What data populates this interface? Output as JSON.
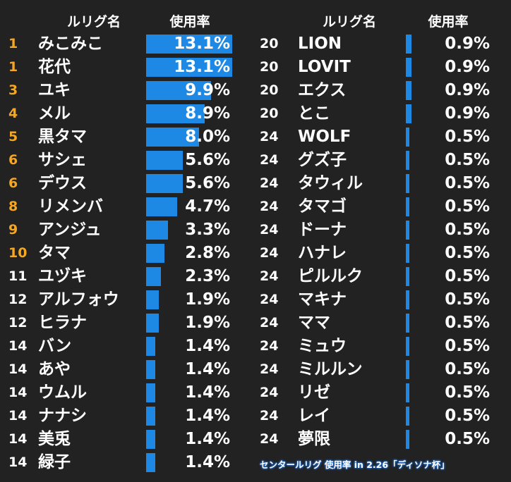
{
  "header": {
    "name_label": "ルリグ名",
    "rate_label": "使用率"
  },
  "caption": "センタールリグ 使用率 in 2.26「ディソナ杯」",
  "colors": {
    "background": "#222222",
    "bar": "#1e88e5",
    "top_rank": "#f5a623",
    "rank": "#ffffff",
    "text": "#ffffff"
  },
  "chart_data": {
    "type": "bar",
    "xlabel": "ルリグ名",
    "ylabel": "使用率",
    "left": [
      {
        "rank": "1",
        "name": "みこみこ",
        "pct_label": "13.1%",
        "value": 13.1
      },
      {
        "rank": "1",
        "name": "花代",
        "pct_label": "13.1%",
        "value": 13.1
      },
      {
        "rank": "3",
        "name": "ユキ",
        "pct_label": "9.9%",
        "value": 9.9
      },
      {
        "rank": "4",
        "name": "メル",
        "pct_label": "8.9%",
        "value": 8.9
      },
      {
        "rank": "5",
        "name": "黒タマ",
        "pct_label": "8.0%",
        "value": 8.0
      },
      {
        "rank": "6",
        "name": "サシェ",
        "pct_label": "5.6%",
        "value": 5.6
      },
      {
        "rank": "6",
        "name": "デウス",
        "pct_label": "5.6%",
        "value": 5.6
      },
      {
        "rank": "8",
        "name": "リメンバ",
        "pct_label": "4.7%",
        "value": 4.7
      },
      {
        "rank": "9",
        "name": "アンジュ",
        "pct_label": "3.3%",
        "value": 3.3
      },
      {
        "rank": "10",
        "name": "タマ",
        "pct_label": "2.8%",
        "value": 2.8
      },
      {
        "rank": "11",
        "name": "ユヅキ",
        "pct_label": "2.3%",
        "value": 2.3
      },
      {
        "rank": "12",
        "name": "アルフォウ",
        "pct_label": "1.9%",
        "value": 1.9
      },
      {
        "rank": "12",
        "name": "ヒラナ",
        "pct_label": "1.9%",
        "value": 1.9
      },
      {
        "rank": "14",
        "name": "バン",
        "pct_label": "1.4%",
        "value": 1.4
      },
      {
        "rank": "14",
        "name": "あや",
        "pct_label": "1.4%",
        "value": 1.4
      },
      {
        "rank": "14",
        "name": "ウムル",
        "pct_label": "1.4%",
        "value": 1.4
      },
      {
        "rank": "14",
        "name": "ナナシ",
        "pct_label": "1.4%",
        "value": 1.4
      },
      {
        "rank": "14",
        "name": "美兎",
        "pct_label": "1.4%",
        "value": 1.4
      },
      {
        "rank": "14",
        "name": "緑子",
        "pct_label": "1.4%",
        "value": 1.4
      }
    ],
    "right": [
      {
        "rank": "20",
        "name": "LION",
        "pct_label": "0.9%",
        "value": 0.9
      },
      {
        "rank": "20",
        "name": "LOVIT",
        "pct_label": "0.9%",
        "value": 0.9
      },
      {
        "rank": "20",
        "name": "エクス",
        "pct_label": "0.9%",
        "value": 0.9
      },
      {
        "rank": "20",
        "name": "とこ",
        "pct_label": "0.9%",
        "value": 0.9
      },
      {
        "rank": "24",
        "name": "WOLF",
        "pct_label": "0.5%",
        "value": 0.5
      },
      {
        "rank": "24",
        "name": "グズ子",
        "pct_label": "0.5%",
        "value": 0.5
      },
      {
        "rank": "24",
        "name": "タウィル",
        "pct_label": "0.5%",
        "value": 0.5
      },
      {
        "rank": "24",
        "name": "タマゴ",
        "pct_label": "0.5%",
        "value": 0.5
      },
      {
        "rank": "24",
        "name": "ドーナ",
        "pct_label": "0.5%",
        "value": 0.5
      },
      {
        "rank": "24",
        "name": "ハナレ",
        "pct_label": "0.5%",
        "value": 0.5
      },
      {
        "rank": "24",
        "name": "ピルルク",
        "pct_label": "0.5%",
        "value": 0.5
      },
      {
        "rank": "24",
        "name": "マキナ",
        "pct_label": "0.5%",
        "value": 0.5
      },
      {
        "rank": "24",
        "name": "ママ",
        "pct_label": "0.5%",
        "value": 0.5
      },
      {
        "rank": "24",
        "name": "ミュウ",
        "pct_label": "0.5%",
        "value": 0.5
      },
      {
        "rank": "24",
        "name": "ミルルン",
        "pct_label": "0.5%",
        "value": 0.5
      },
      {
        "rank": "24",
        "name": "リゼ",
        "pct_label": "0.5%",
        "value": 0.5
      },
      {
        "rank": "24",
        "name": "レイ",
        "pct_label": "0.5%",
        "value": 0.5
      },
      {
        "rank": "24",
        "name": "夢限",
        "pct_label": "0.5%",
        "value": 0.5
      }
    ]
  }
}
